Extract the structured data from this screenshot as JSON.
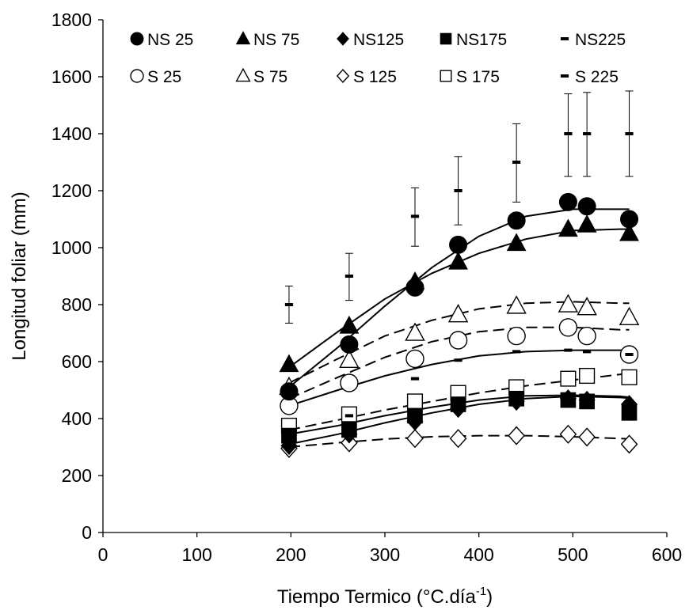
{
  "chart_data": {
    "type": "scatter",
    "xlabel": "Tiempo Termico (°C.día",
    "xlabel_sup": "-1",
    "xlabel_end": ")",
    "ylabel": "Longitud foliar (mm)",
    "xlim": [
      0,
      600
    ],
    "ylim": [
      0,
      1800
    ],
    "xticks": [
      "0",
      "100",
      "200",
      "300",
      "400",
      "500",
      "600"
    ],
    "yticks": [
      "0",
      "200",
      "400",
      "600",
      "800",
      "1000",
      "1200",
      "1400",
      "1600",
      "1800"
    ],
    "grid": false,
    "legend_position": "top",
    "x": [
      198,
      262,
      332,
      378,
      440,
      495,
      515,
      560
    ],
    "series": [
      {
        "name": "NS 25",
        "marker": "circle",
        "fill": "filled",
        "values": [
          495,
          660,
          860,
          1010,
          1095,
          1160,
          1145,
          1100
        ]
      },
      {
        "name": "NS 75",
        "marker": "triangle",
        "fill": "filled",
        "values": [
          590,
          725,
          880,
          950,
          1015,
          1065,
          1080,
          1050
        ]
      },
      {
        "name": "NS125",
        "marker": "diamond",
        "fill": "filled",
        "values": [
          305,
          345,
          390,
          435,
          460,
          470,
          465,
          450
        ]
      },
      {
        "name": "NS175",
        "marker": "square",
        "fill": "filled",
        "values": [
          340,
          360,
          410,
          450,
          470,
          465,
          460,
          420
        ]
      },
      {
        "name": "NS225",
        "marker": "dash",
        "fill": "filled",
        "values": [
          360,
          410,
          540,
          605,
          635,
          640,
          635,
          625
        ]
      },
      {
        "name": "S  25",
        "marker": "circle",
        "fill": "open",
        "values": [
          445,
          525,
          610,
          675,
          690,
          720,
          690,
          625
        ]
      },
      {
        "name": "S  75",
        "marker": "triangle",
        "fill": "open",
        "values": [
          510,
          605,
          700,
          765,
          795,
          800,
          790,
          755
        ]
      },
      {
        "name": "S 125",
        "marker": "diamond",
        "fill": "open",
        "values": [
          295,
          315,
          330,
          330,
          340,
          345,
          335,
          310
        ]
      },
      {
        "name": "S 175",
        "marker": "square",
        "fill": "open",
        "values": [
          375,
          415,
          460,
          490,
          510,
          540,
          550,
          545
        ]
      },
      {
        "name": "S 225",
        "marker": "dash",
        "fill": "filled",
        "values": [
          800,
          900,
          1110,
          1200,
          1300,
          1400,
          1400,
          1400
        ]
      }
    ],
    "error_bars": {
      "series": "S 225",
      "x": [
        198,
        262,
        332,
        378,
        440,
        495,
        515,
        560
      ],
      "upper": [
        865,
        980,
        1210,
        1320,
        1435,
        1540,
        1545,
        1550
      ],
      "lower": [
        735,
        815,
        1005,
        1080,
        1160,
        1250,
        1250,
        1250
      ]
    },
    "fits": [
      {
        "series": "NS 25",
        "style": "solid",
        "x": [
          198,
          250,
          300,
          350,
          400,
          450,
          500,
          550,
          560
        ],
        "values": [
          510,
          650,
          795,
          930,
          1040,
          1110,
          1135,
          1135,
          1135
        ]
      },
      {
        "series": "NS 75",
        "style": "solid",
        "x": [
          198,
          250,
          300,
          350,
          400,
          450,
          500,
          550,
          560
        ],
        "values": [
          580,
          705,
          820,
          910,
          980,
          1030,
          1060,
          1065,
          1065
        ]
      },
      {
        "series": "NS225",
        "style": "solid",
        "x": [
          198,
          250,
          300,
          350,
          400,
          450,
          500,
          550,
          560
        ],
        "values": [
          445,
          500,
          550,
          590,
          620,
          635,
          640,
          640,
          640
        ]
      },
      {
        "series": "S  25",
        "style": "dashed",
        "x": [
          198,
          250,
          300,
          350,
          400,
          450,
          500,
          550,
          560
        ],
        "values": [
          470,
          545,
          615,
          670,
          705,
          720,
          720,
          712,
          712
        ]
      },
      {
        "series": "S  75",
        "style": "dashed",
        "x": [
          198,
          250,
          300,
          350,
          400,
          450,
          500,
          550,
          560
        ],
        "values": [
          525,
          610,
          690,
          745,
          785,
          805,
          810,
          805,
          805
        ]
      },
      {
        "series": "S 175",
        "style": "dashed",
        "x": [
          198,
          250,
          300,
          350,
          400,
          450,
          500,
          550,
          560
        ],
        "values": [
          360,
          395,
          430,
          460,
          490,
          515,
          535,
          555,
          560
        ]
      },
      {
        "series": "NS175",
        "style": "solid",
        "x": [
          198,
          250,
          300,
          350,
          400,
          450,
          500,
          550,
          560
        ],
        "values": [
          345,
          375,
          410,
          440,
          465,
          480,
          482,
          478,
          475
        ]
      },
      {
        "series": "NS125",
        "style": "solid",
        "x": [
          198,
          250,
          300,
          350,
          400,
          450,
          500,
          550,
          560
        ],
        "values": [
          310,
          345,
          385,
          420,
          450,
          470,
          478,
          474,
          472
        ]
      },
      {
        "series": "S 125",
        "style": "dashed",
        "x": [
          198,
          250,
          300,
          350,
          400,
          450,
          500,
          550,
          560
        ],
        "values": [
          300,
          315,
          328,
          336,
          340,
          340,
          336,
          330,
          328
        ]
      }
    ]
  }
}
